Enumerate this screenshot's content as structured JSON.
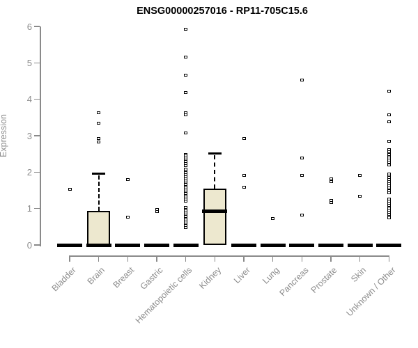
{
  "chart_data": {
    "type": "boxplot",
    "title": "ENSG00000257016 - RP11-705C15.6",
    "ylabel": "Expression",
    "ylim": [
      0,
      6
    ],
    "yticks": [
      0,
      1,
      2,
      3,
      4,
      5,
      6
    ],
    "grid": false,
    "box_fill_color": "#EDE8CF",
    "axis_color": "#8a8a8a",
    "label_color": "#8c8c8c",
    "point_style": "open-square",
    "categories": [
      {
        "name": "Bladder",
        "median": 0,
        "q1": 0,
        "q3": 0,
        "whisker_high": null,
        "outliers": [
          1.52
        ]
      },
      {
        "name": "Brain",
        "median": 0,
        "q1": 0,
        "q3": 0.93,
        "whisker_high": 1.95,
        "outliers": [
          3.64,
          3.35,
          2.93,
          2.83
        ]
      },
      {
        "name": "Breast",
        "median": 0,
        "q1": 0,
        "q3": 0,
        "whisker_high": null,
        "outliers": [
          1.79,
          0.77
        ]
      },
      {
        "name": "Gastric",
        "median": 0,
        "q1": 0,
        "q3": 0,
        "whisker_high": null,
        "outliers": [
          0.97,
          0.92
        ]
      },
      {
        "name": "Hematopoietic cells",
        "median": 0,
        "q1": 0,
        "q3": 0,
        "whisker_high": null,
        "outliers": [
          5.92,
          5.16,
          4.67,
          4.18,
          3.63,
          3.57,
          3.08,
          2.49,
          2.44,
          2.39,
          2.34,
          2.29,
          2.24,
          2.17,
          2.08,
          2.03,
          1.98,
          1.93,
          1.87,
          1.82,
          1.76,
          1.71,
          1.66,
          1.61,
          1.56,
          1.51,
          1.46,
          1.41,
          1.36,
          1.31,
          1.26,
          1.21,
          1.03,
          0.98,
          0.93,
          0.88,
          0.83,
          0.78,
          0.73,
          0.68,
          0.63,
          0.58,
          0.53,
          0.48
        ]
      },
      {
        "name": "Kidney",
        "median": 0.93,
        "q1": 0,
        "q3": 1.55,
        "whisker_high": 2.51,
        "outliers": []
      },
      {
        "name": "Liver",
        "median": 0,
        "q1": 0,
        "q3": 0,
        "whisker_high": null,
        "outliers": [
          2.93,
          1.92,
          1.59
        ]
      },
      {
        "name": "Lung",
        "median": 0,
        "q1": 0,
        "q3": 0,
        "whisker_high": null,
        "outliers": [
          0.72
        ]
      },
      {
        "name": "Pancreas",
        "median": 0,
        "q1": 0,
        "q3": 0,
        "whisker_high": null,
        "outliers": [
          4.52,
          2.38,
          1.92,
          0.82
        ]
      },
      {
        "name": "Prostate",
        "median": 0,
        "q1": 0,
        "q3": 0,
        "whisker_high": null,
        "outliers": [
          1.81,
          1.73,
          1.22,
          1.17
        ]
      },
      {
        "name": "Skin",
        "median": 0,
        "q1": 0,
        "q3": 0,
        "whisker_high": null,
        "outliers": [
          1.92,
          1.33
        ]
      },
      {
        "name": "Unknown / Other",
        "median": 0,
        "q1": 0,
        "q3": 0,
        "whisker_high": null,
        "outliers": [
          4.23,
          3.57,
          3.38,
          2.84,
          2.62,
          2.56,
          2.48,
          2.43,
          2.38,
          2.33,
          2.28,
          2.19,
          1.95,
          1.9,
          1.85,
          1.8,
          1.74,
          1.68,
          1.62,
          1.56,
          1.5,
          1.44,
          1.26,
          1.2,
          1.14,
          1.08,
          1.02,
          0.96,
          0.9,
          0.84,
          0.78,
          0.74
        ]
      }
    ]
  }
}
